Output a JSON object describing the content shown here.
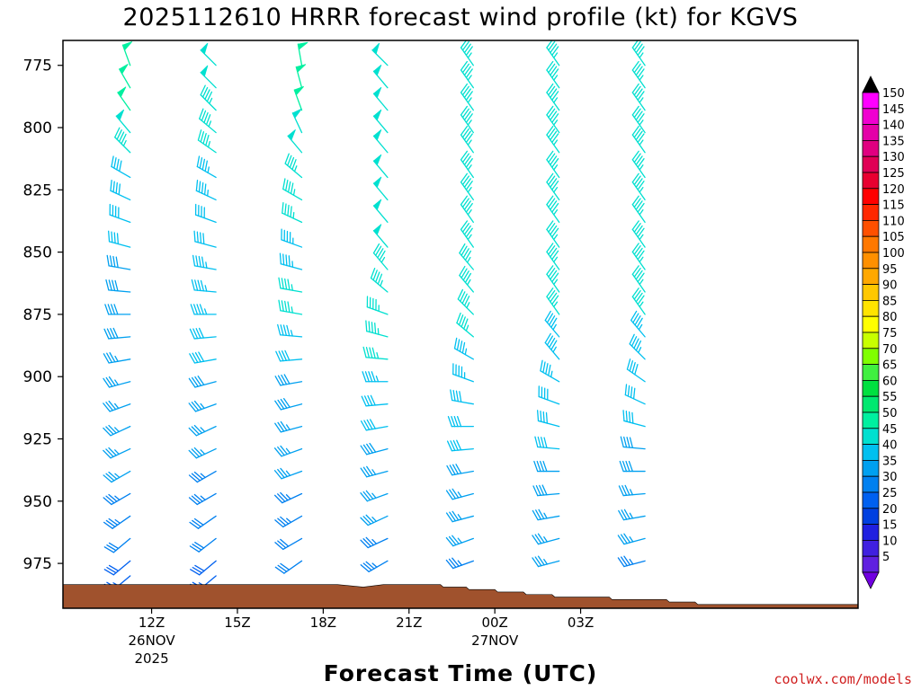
{
  "chart_data": {
    "type": "wind_barb_profile",
    "title": "2025112610 HRRR forecast wind profile (kt) for KGVS",
    "xlabel": "Forecast Time (UTC)",
    "ylabel": "",
    "credit": "coolwx.com/models",
    "y_axis": {
      "range": [
        765,
        993
      ],
      "ticks": [
        775,
        800,
        825,
        850,
        875,
        900,
        925,
        950,
        975
      ],
      "tick_labels": [
        "775",
        "800",
        "825",
        "850",
        "875",
        "900",
        "925",
        "950",
        "975"
      ]
    },
    "x_axis": {
      "range_hours": [
        8.9,
        36.7
      ],
      "ticks": [
        {
          "hour": 12,
          "label": "12Z",
          "sub1": "26NOV",
          "sub2": "2025"
        },
        {
          "hour": 15,
          "label": "15Z",
          "sub1": "",
          "sub2": ""
        },
        {
          "hour": 18,
          "label": "18Z",
          "sub1": "",
          "sub2": ""
        },
        {
          "hour": 21,
          "label": "21Z",
          "sub1": "",
          "sub2": ""
        },
        {
          "hour": 24,
          "label": "00Z",
          "sub1": "27NOV",
          "sub2": ""
        },
        {
          "hour": 27,
          "label": "03Z",
          "sub1": "",
          "sub2": ""
        }
      ]
    },
    "barb_columns": [
      {
        "hour": 11.25,
        "profile": [
          [
            775,
            340,
            52
          ],
          [
            784,
            330,
            52
          ],
          [
            793,
            325,
            50
          ],
          [
            802,
            320,
            48
          ],
          [
            810,
            315,
            46
          ],
          [
            820,
            300,
            42
          ],
          [
            829,
            295,
            41
          ],
          [
            838,
            290,
            40
          ],
          [
            848,
            285,
            40
          ],
          [
            857,
            280,
            39
          ],
          [
            866,
            275,
            39
          ],
          [
            875,
            270,
            38
          ],
          [
            884,
            265,
            38
          ],
          [
            893,
            260,
            37
          ],
          [
            902,
            255,
            37
          ],
          [
            911,
            250,
            36
          ],
          [
            920,
            245,
            36
          ],
          [
            929,
            245,
            35
          ],
          [
            938,
            240,
            35
          ],
          [
            947,
            240,
            34
          ],
          [
            956,
            235,
            33
          ],
          [
            965,
            230,
            30
          ],
          [
            974,
            230,
            28
          ],
          [
            980,
            230,
            26
          ]
        ]
      },
      {
        "hour": 14.25,
        "profile": [
          [
            775,
            315,
            48
          ],
          [
            784,
            315,
            48
          ],
          [
            793,
            315,
            47
          ],
          [
            802,
            310,
            46
          ],
          [
            810,
            305,
            45
          ],
          [
            820,
            300,
            44
          ],
          [
            829,
            295,
            43
          ],
          [
            838,
            290,
            42
          ],
          [
            848,
            285,
            42
          ],
          [
            857,
            280,
            43
          ],
          [
            866,
            275,
            44
          ],
          [
            875,
            270,
            44
          ],
          [
            884,
            265,
            42
          ],
          [
            893,
            260,
            40
          ],
          [
            902,
            255,
            38
          ],
          [
            911,
            250,
            37
          ],
          [
            920,
            245,
            36
          ],
          [
            929,
            245,
            35
          ],
          [
            938,
            240,
            34
          ],
          [
            947,
            240,
            33
          ],
          [
            956,
            235,
            32
          ],
          [
            965,
            232,
            30
          ],
          [
            974,
            230,
            28
          ],
          [
            980,
            230,
            27
          ]
        ]
      },
      {
        "hour": 17.25,
        "profile": [
          [
            775,
            350,
            50
          ],
          [
            784,
            345,
            50
          ],
          [
            793,
            340,
            50
          ],
          [
            802,
            335,
            49
          ],
          [
            810,
            320,
            48
          ],
          [
            820,
            310,
            47
          ],
          [
            829,
            300,
            46
          ],
          [
            838,
            295,
            45
          ],
          [
            848,
            290,
            44
          ],
          [
            857,
            285,
            44
          ],
          [
            866,
            280,
            45
          ],
          [
            875,
            280,
            45
          ],
          [
            884,
            275,
            43
          ],
          [
            893,
            265,
            41
          ],
          [
            902,
            260,
            39
          ],
          [
            911,
            255,
            38
          ],
          [
            920,
            255,
            37
          ],
          [
            929,
            250,
            36
          ],
          [
            938,
            250,
            35
          ],
          [
            947,
            245,
            34
          ],
          [
            956,
            240,
            33
          ],
          [
            965,
            240,
            32
          ],
          [
            974,
            235,
            31
          ]
        ]
      },
      {
        "hour": 20.25,
        "profile": [
          [
            775,
            315,
            48
          ],
          [
            784,
            320,
            48
          ],
          [
            793,
            320,
            49
          ],
          [
            802,
            320,
            49
          ],
          [
            810,
            320,
            49
          ],
          [
            820,
            320,
            49
          ],
          [
            829,
            320,
            48
          ],
          [
            838,
            320,
            48
          ],
          [
            848,
            320,
            48
          ],
          [
            857,
            320,
            47
          ],
          [
            866,
            310,
            47
          ],
          [
            875,
            290,
            47
          ],
          [
            884,
            285,
            46
          ],
          [
            893,
            275,
            45
          ],
          [
            902,
            270,
            44
          ],
          [
            911,
            265,
            42
          ],
          [
            920,
            260,
            40
          ],
          [
            929,
            255,
            39
          ],
          [
            938,
            255,
            37
          ],
          [
            947,
            250,
            36
          ],
          [
            956,
            245,
            35
          ],
          [
            965,
            245,
            34
          ],
          [
            974,
            240,
            33
          ]
        ]
      },
      {
        "hour": 23.25,
        "profile": [
          [
            775,
            325,
            47
          ],
          [
            784,
            325,
            47
          ],
          [
            793,
            325,
            47
          ],
          [
            802,
            325,
            47
          ],
          [
            810,
            325,
            47
          ],
          [
            820,
            325,
            46
          ],
          [
            829,
            325,
            46
          ],
          [
            838,
            325,
            46
          ],
          [
            848,
            325,
            46
          ],
          [
            857,
            320,
            46
          ],
          [
            866,
            320,
            46
          ],
          [
            875,
            315,
            46
          ],
          [
            884,
            310,
            45
          ],
          [
            893,
            300,
            44
          ],
          [
            902,
            290,
            43
          ],
          [
            911,
            280,
            42
          ],
          [
            920,
            270,
            41
          ],
          [
            929,
            265,
            40
          ],
          [
            938,
            260,
            38
          ],
          [
            947,
            255,
            37
          ],
          [
            956,
            255,
            36
          ],
          [
            965,
            250,
            35
          ],
          [
            974,
            250,
            33
          ]
        ]
      },
      {
        "hour": 26.25,
        "profile": [
          [
            775,
            325,
            47
          ],
          [
            784,
            325,
            47
          ],
          [
            793,
            325,
            47
          ],
          [
            802,
            325,
            47
          ],
          [
            810,
            325,
            46
          ],
          [
            820,
            325,
            46
          ],
          [
            829,
            325,
            46
          ],
          [
            838,
            325,
            46
          ],
          [
            848,
            325,
            45
          ],
          [
            857,
            325,
            45
          ],
          [
            866,
            325,
            45
          ],
          [
            875,
            325,
            45
          ],
          [
            884,
            320,
            44
          ],
          [
            893,
            320,
            44
          ],
          [
            902,
            300,
            43
          ],
          [
            911,
            290,
            42
          ],
          [
            920,
            285,
            41
          ],
          [
            929,
            275,
            40
          ],
          [
            938,
            270,
            39
          ],
          [
            947,
            265,
            38
          ],
          [
            956,
            260,
            37
          ],
          [
            965,
            255,
            36
          ],
          [
            974,
            255,
            35
          ]
        ]
      },
      {
        "hour": 29.25,
        "profile": [
          [
            775,
            325,
            46
          ],
          [
            784,
            325,
            46
          ],
          [
            793,
            325,
            46
          ],
          [
            802,
            325,
            46
          ],
          [
            810,
            325,
            46
          ],
          [
            820,
            325,
            46
          ],
          [
            829,
            325,
            45
          ],
          [
            838,
            325,
            45
          ],
          [
            848,
            325,
            45
          ],
          [
            857,
            325,
            45
          ],
          [
            866,
            325,
            45
          ],
          [
            875,
            325,
            45
          ],
          [
            884,
            320,
            44
          ],
          [
            893,
            315,
            43
          ],
          [
            902,
            305,
            42
          ],
          [
            911,
            295,
            41
          ],
          [
            920,
            285,
            40
          ],
          [
            929,
            275,
            39
          ],
          [
            938,
            270,
            38
          ],
          [
            947,
            265,
            37
          ],
          [
            956,
            260,
            36
          ],
          [
            965,
            255,
            35
          ],
          [
            974,
            255,
            34
          ]
        ]
      }
    ],
    "ground": {
      "color": "#A0522D",
      "levels": [
        [
          9.5,
          983.5
        ],
        [
          18.5,
          983.5
        ],
        [
          19.4,
          984.5
        ],
        [
          20.1,
          983.5
        ],
        [
          22.1,
          983.5
        ],
        [
          22.2,
          984.5
        ],
        [
          23.0,
          984.5
        ],
        [
          23.1,
          985.5
        ],
        [
          24.0,
          985.5
        ],
        [
          24.1,
          986.5
        ],
        [
          25.0,
          986.5
        ],
        [
          25.1,
          987.5
        ],
        [
          26.0,
          987.5
        ],
        [
          26.1,
          988.5
        ],
        [
          28.0,
          988.5
        ],
        [
          28.1,
          989.5
        ],
        [
          30.0,
          989.5
        ],
        [
          30.1,
          990.5
        ],
        [
          31.0,
          990.5
        ],
        [
          31.1,
          991.5
        ],
        [
          32.0,
          991.5
        ]
      ]
    },
    "colorbar": {
      "labels": [
        "150",
        "145",
        "140",
        "135",
        "130",
        "125",
        "120",
        "115",
        "110",
        "105",
        "100",
        "95",
        "90",
        "85",
        "80",
        "75",
        "70",
        "65",
        "60",
        "55",
        "50",
        "45",
        "40",
        "35",
        "30",
        "25",
        "20",
        "15",
        "10",
        "5"
      ],
      "colors": [
        "#FF00FF",
        "#F000D0",
        "#E400A8",
        "#E00080",
        "#E00055",
        "#E80030",
        "#FF0000",
        "#FF2800",
        "#FF5000",
        "#FF7800",
        "#FF9000",
        "#FFA800",
        "#FFC800",
        "#FFE400",
        "#FFFF00",
        "#C8FF00",
        "#80FF00",
        "#40F040",
        "#00E040",
        "#00E870",
        "#00F0A0",
        "#00E0D0",
        "#00C0F0",
        "#00A0F0",
        "#0080F0",
        "#0060F0",
        "#0040E0",
        "#2020E0",
        "#4020E0",
        "#6020E0"
      ],
      "top_arrow_color": "#000000",
      "bottom_arrow_color": "#7000E0"
    }
  }
}
